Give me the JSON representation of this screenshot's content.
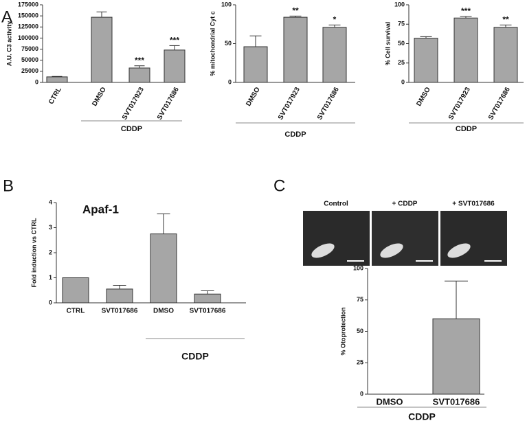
{
  "panels": [
    "A",
    "B",
    "C"
  ],
  "images": [
    {
      "label": "Control"
    },
    {
      "label": "+ CDDP"
    },
    {
      "label": "+ SVT017686"
    }
  ],
  "chart_data": [
    {
      "type": "bar",
      "y_label": "A.U. C3 activity",
      "categories": [
        "CTRL",
        "DMSO",
        "SVT017923",
        "SVT017686"
      ],
      "values": [
        12500,
        147000,
        32500,
        73000
      ],
      "errors": [
        1000,
        12000,
        5000,
        10000
      ],
      "significance": [
        null,
        null,
        "***",
        "***"
      ],
      "group_label": "CDDP",
      "color": "#a6a6a6",
      "ylim": [
        0,
        175000
      ],
      "yticks": [
        0,
        25000,
        50000,
        75000,
        100000,
        125000,
        150000,
        175000
      ]
    },
    {
      "type": "bar",
      "y_label": "% mitochondrial Cyt c",
      "categories": [
        "DMSO",
        "SVT017923",
        "SVT017686"
      ],
      "values": [
        46,
        84,
        71
      ],
      "errors": [
        14,
        1.5,
        3
      ],
      "significance": [
        null,
        "**",
        "*"
      ],
      "group_label": "CDDP",
      "color": "#a6a6a6",
      "ylim": [
        0,
        100
      ],
      "yticks": [
        0,
        50,
        100
      ]
    },
    {
      "type": "bar",
      "y_label": "% Cell survival",
      "categories": [
        "DMSO",
        "SVT017923",
        "SVT017686"
      ],
      "values": [
        57,
        83,
        71
      ],
      "errors": [
        2,
        2,
        3
      ],
      "significance": [
        null,
        "***",
        "**"
      ],
      "group_label": "CDDP",
      "color": "#a6a6a6",
      "ylim": [
        0,
        100
      ],
      "yticks": [
        0,
        25,
        50,
        75,
        100
      ]
    },
    {
      "type": "bar",
      "title": "Apaf-1",
      "y_label": "Fold induction vs CTRL",
      "categories": [
        "CTRL",
        "SVT017686",
        "DMSO",
        "SVT017686"
      ],
      "values": [
        1.0,
        0.55,
        2.75,
        0.35
      ],
      "errors": [
        null,
        0.15,
        0.8,
        0.13
      ],
      "group_label": "CDDP",
      "color": "#a6a6a6",
      "ylim": [
        0,
        4
      ],
      "yticks": [
        0,
        1,
        2,
        3,
        4
      ]
    },
    {
      "type": "bar",
      "y_label": "% Otoprotection",
      "categories": [
        "DMSO",
        "SVT017686"
      ],
      "values": [
        0,
        60
      ],
      "errors": [
        null,
        30
      ],
      "group_label": "CDDP",
      "color": "#a6a6a6",
      "ylim": [
        0,
        100
      ],
      "yticks": [
        0,
        25,
        50,
        75,
        100
      ]
    }
  ]
}
